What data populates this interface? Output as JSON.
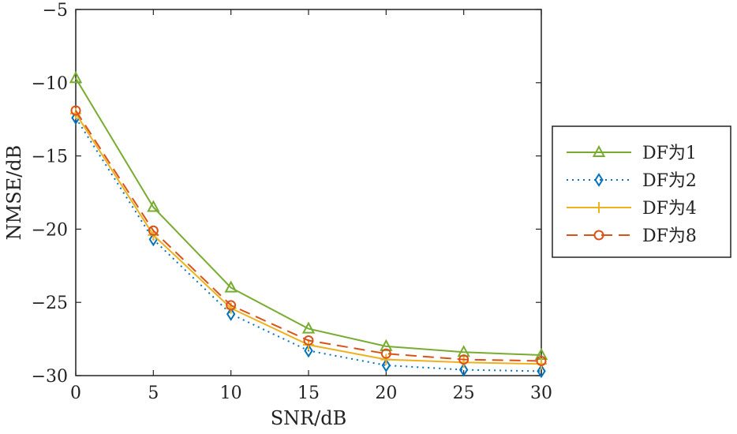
{
  "chart_data": {
    "type": "line",
    "xlabel": "SNR/dB",
    "ylabel": "NMSE/dB",
    "x": [
      0,
      5,
      10,
      15,
      20,
      25,
      30
    ],
    "xlim": [
      0,
      30
    ],
    "ylim": [
      -30,
      -5
    ],
    "xticks": [
      0,
      5,
      10,
      15,
      20,
      25,
      30
    ],
    "yticks": [
      -5,
      -10,
      -15,
      -20,
      -25,
      -30
    ],
    "grid": false,
    "legend_position": "right",
    "series": [
      {
        "name": "DF为1",
        "values": [
          -9.7,
          -18.5,
          -24.0,
          -26.8,
          -28.0,
          -28.4,
          -28.6
        ],
        "color": "#77ac30",
        "line": "solid",
        "marker": "triangle"
      },
      {
        "name": "DF为2",
        "values": [
          -12.4,
          -20.7,
          -25.8,
          -28.3,
          -29.3,
          -29.6,
          -29.7
        ],
        "color": "#0072bd",
        "line": "dotted",
        "marker": "diamond"
      },
      {
        "name": "DF为4",
        "values": [
          -12.1,
          -20.4,
          -25.4,
          -27.9,
          -28.9,
          -29.1,
          -29.2
        ],
        "color": "#edb120",
        "line": "solid",
        "marker": "plus"
      },
      {
        "name": "DF为8",
        "values": [
          -11.9,
          -20.1,
          -25.2,
          -27.6,
          -28.5,
          -28.9,
          -29.0
        ],
        "color": "#d95319",
        "line": "dashed",
        "marker": "circle"
      }
    ]
  }
}
